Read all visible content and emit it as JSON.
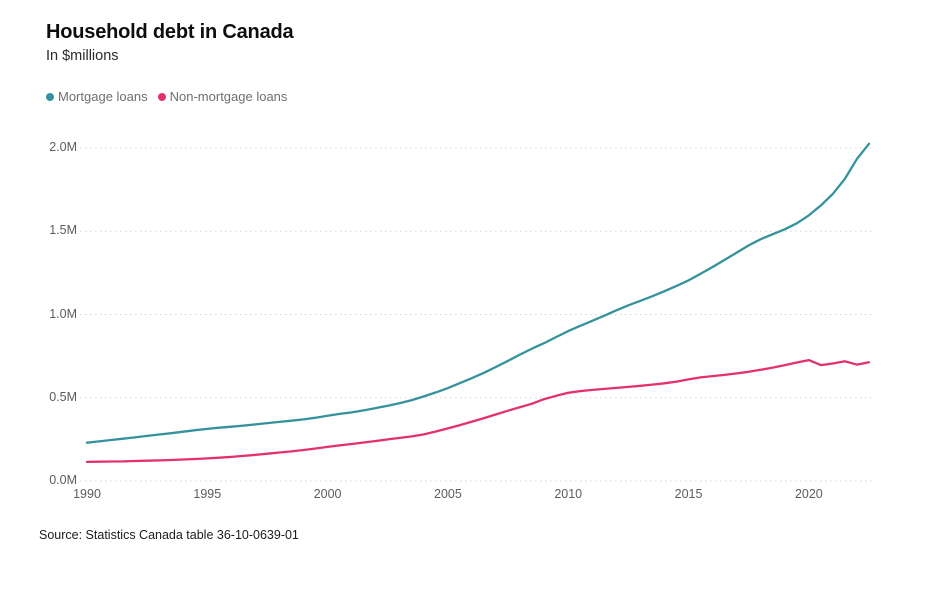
{
  "header": {
    "title": "Household debt in Canada",
    "subtitle": "In $millions"
  },
  "legend": [
    {
      "label": "Mortgage loans",
      "color": "#35929c"
    },
    {
      "label": "Non-mortgage loans",
      "color": "#e3316f"
    }
  ],
  "source": "Source:  Statistics Canada table 36-10-0639-01",
  "chart_data": {
    "type": "line",
    "title": "Household debt in Canada",
    "subtitle": "In $millions",
    "xlabel": "",
    "ylabel": "",
    "grid": "horizontal-dotted",
    "legend_position": "top-left",
    "xlim": [
      1990,
      2022.5
    ],
    "ylim": [
      0,
      2.1
    ],
    "x_ticks": [
      1990,
      1995,
      2000,
      2005,
      2010,
      2015,
      2020
    ],
    "y_ticks": [
      {
        "value": 0.0,
        "label": "0.0M"
      },
      {
        "value": 0.5,
        "label": "0.5M"
      },
      {
        "value": 1.0,
        "label": "1.0M"
      },
      {
        "value": 1.5,
        "label": "1.5M"
      },
      {
        "value": 2.0,
        "label": "2.0M"
      }
    ],
    "x_unit": "year (quarterly-interpolated, plotted semi-annually)",
    "y_unit": "$millions, M = 1,000,000 million",
    "x": [
      1990,
      1990.5,
      1991,
      1991.5,
      1992,
      1992.5,
      1993,
      1993.5,
      1994,
      1994.5,
      1995,
      1995.5,
      1996,
      1996.5,
      1997,
      1997.5,
      1998,
      1998.5,
      1999,
      1999.5,
      2000,
      2000.5,
      2001,
      2001.5,
      2002,
      2002.5,
      2003,
      2003.5,
      2004,
      2004.5,
      2005,
      2005.5,
      2006,
      2006.5,
      2007,
      2007.5,
      2008,
      2008.5,
      2009,
      2009.5,
      2010,
      2010.5,
      2011,
      2011.5,
      2012,
      2012.5,
      2013,
      2013.5,
      2014,
      2014.5,
      2015,
      2015.5,
      2016,
      2016.5,
      2017,
      2017.5,
      2018,
      2018.5,
      2019,
      2019.5,
      2020,
      2020.5,
      2021,
      2021.5,
      2022,
      2022.5
    ],
    "series": [
      {
        "name": "Mortgage loans",
        "color": "#35929c",
        "values": [
          0.23,
          0.238,
          0.246,
          0.254,
          0.262,
          0.271,
          0.279,
          0.287,
          0.296,
          0.305,
          0.313,
          0.32,
          0.326,
          0.333,
          0.34,
          0.348,
          0.355,
          0.362,
          0.37,
          0.38,
          0.392,
          0.403,
          0.412,
          0.424,
          0.438,
          0.452,
          0.468,
          0.486,
          0.508,
          0.532,
          0.558,
          0.588,
          0.618,
          0.65,
          0.685,
          0.722,
          0.76,
          0.795,
          0.828,
          0.865,
          0.9,
          0.932,
          0.962,
          0.993,
          1.025,
          1.055,
          1.082,
          1.11,
          1.14,
          1.172,
          1.205,
          1.245,
          1.285,
          1.328,
          1.372,
          1.415,
          1.452,
          1.482,
          1.512,
          1.548,
          1.595,
          1.655,
          1.725,
          1.815,
          1.935,
          2.025
        ]
      },
      {
        "name": "Non-mortgage loans",
        "color": "#e3316f",
        "values": [
          0.115,
          0.116,
          0.117,
          0.118,
          0.12,
          0.122,
          0.124,
          0.126,
          0.129,
          0.132,
          0.136,
          0.14,
          0.145,
          0.151,
          0.157,
          0.164,
          0.171,
          0.178,
          0.186,
          0.195,
          0.205,
          0.214,
          0.222,
          0.231,
          0.24,
          0.25,
          0.259,
          0.268,
          0.28,
          0.297,
          0.316,
          0.336,
          0.357,
          0.378,
          0.4,
          0.422,
          0.444,
          0.464,
          0.492,
          0.512,
          0.53,
          0.54,
          0.547,
          0.553,
          0.559,
          0.565,
          0.572,
          0.579,
          0.587,
          0.597,
          0.61,
          0.622,
          0.63,
          0.637,
          0.646,
          0.656,
          0.668,
          0.681,
          0.696,
          0.712,
          0.726,
          0.696,
          0.706,
          0.719,
          0.699,
          0.713
        ]
      }
    ]
  }
}
